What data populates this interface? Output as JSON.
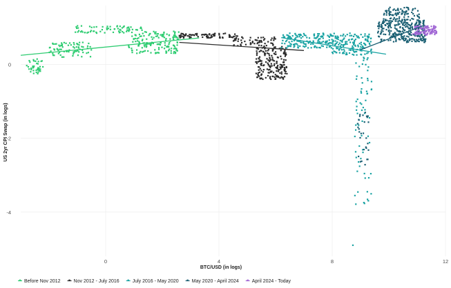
{
  "chart_data": {
    "type": "scatter",
    "xlabel": "BTC/USD (in logs)",
    "ylabel": "US 2yr CPI Swap (in logs)",
    "xlim": [
      -3,
      12
    ],
    "ylim": [
      -5.2,
      1.6
    ],
    "x_ticks": [
      0,
      4,
      8,
      12
    ],
    "y_ticks": [
      0,
      -2,
      -4
    ],
    "grid": true,
    "legend_position": "bottom",
    "series": [
      {
        "name": "Before Nov 2012",
        "color": "#2ecc71",
        "marker": "square",
        "clusters": [
          {
            "x": [
              -2.8,
              -2.2
            ],
            "y": [
              -0.25,
              0.15
            ],
            "n": 40
          },
          {
            "x": [
              -2.0,
              -0.5
            ],
            "y": [
              0.2,
              0.6
            ],
            "n": 80
          },
          {
            "x": [
              -1.1,
              1.3
            ],
            "y": [
              0.85,
              1.05
            ],
            "n": 70
          },
          {
            "x": [
              0.8,
              2.6
            ],
            "y": [
              0.3,
              0.9
            ],
            "n": 160
          }
        ],
        "trend": {
          "x": [
            -3.0,
            3.3
          ],
          "y": [
            0.25,
            0.72
          ]
        }
      },
      {
        "name": "Nov 2012 - July 2016",
        "color": "#2b2b2b",
        "marker": "square",
        "clusters": [
          {
            "x": [
              2.6,
              4.7
            ],
            "y": [
              0.72,
              0.85
            ],
            "n": 80
          },
          {
            "x": [
              4.5,
              6.0
            ],
            "y": [
              0.5,
              0.75
            ],
            "n": 60
          },
          {
            "x": [
              5.3,
              6.4
            ],
            "y": [
              -0.4,
              0.5
            ],
            "n": 200
          }
        ],
        "trend": {
          "x": [
            2.6,
            7.0
          ],
          "y": [
            0.6,
            0.38
          ]
        }
      },
      {
        "name": "July 2016 - May 2020",
        "color": "#1aa3a3",
        "marker": "square",
        "clusters": [
          {
            "x": [
              6.2,
              8.0
            ],
            "y": [
              0.45,
              0.85
            ],
            "n": 160
          },
          {
            "x": [
              8.0,
              9.4
            ],
            "y": [
              0.25,
              0.85
            ],
            "n": 160
          },
          {
            "x": [
              8.8,
              9.4
            ],
            "y": [
              -3.8,
              0.2
            ],
            "n": 70
          },
          {
            "x": [
              8.6,
              9.0
            ],
            "y": [
              -4.9,
              -4.9
            ],
            "n": 1
          }
        ],
        "trend": {
          "x": [
            6.2,
            9.9
          ],
          "y": [
            0.73,
            0.28
          ]
        }
      },
      {
        "name": "May 2020 - April 2024",
        "color": "#1a5f73",
        "marker": "square",
        "clusters": [
          {
            "x": [
              8.9,
              9.3
            ],
            "y": [
              -2.8,
              -1.3
            ],
            "n": 30
          },
          {
            "x": [
              9.6,
              11.3
            ],
            "y": [
              0.6,
              1.2
            ],
            "n": 280
          },
          {
            "x": [
              9.8,
              11.1
            ],
            "y": [
              1.2,
              1.55
            ],
            "n": 90
          }
        ],
        "trend": {
          "x": [
            9.0,
            11.2
          ],
          "y": [
            0.4,
            1.05
          ]
        }
      },
      {
        "name": "April 2024 - Today",
        "color": "#a066d4",
        "marker": "square",
        "clusters": [
          {
            "x": [
              10.9,
              11.7
            ],
            "y": [
              0.8,
              1.05
            ],
            "n": 90
          }
        ],
        "trend": {
          "x": [
            10.8,
            11.6
          ],
          "y": [
            0.82,
            0.98
          ]
        }
      }
    ]
  }
}
